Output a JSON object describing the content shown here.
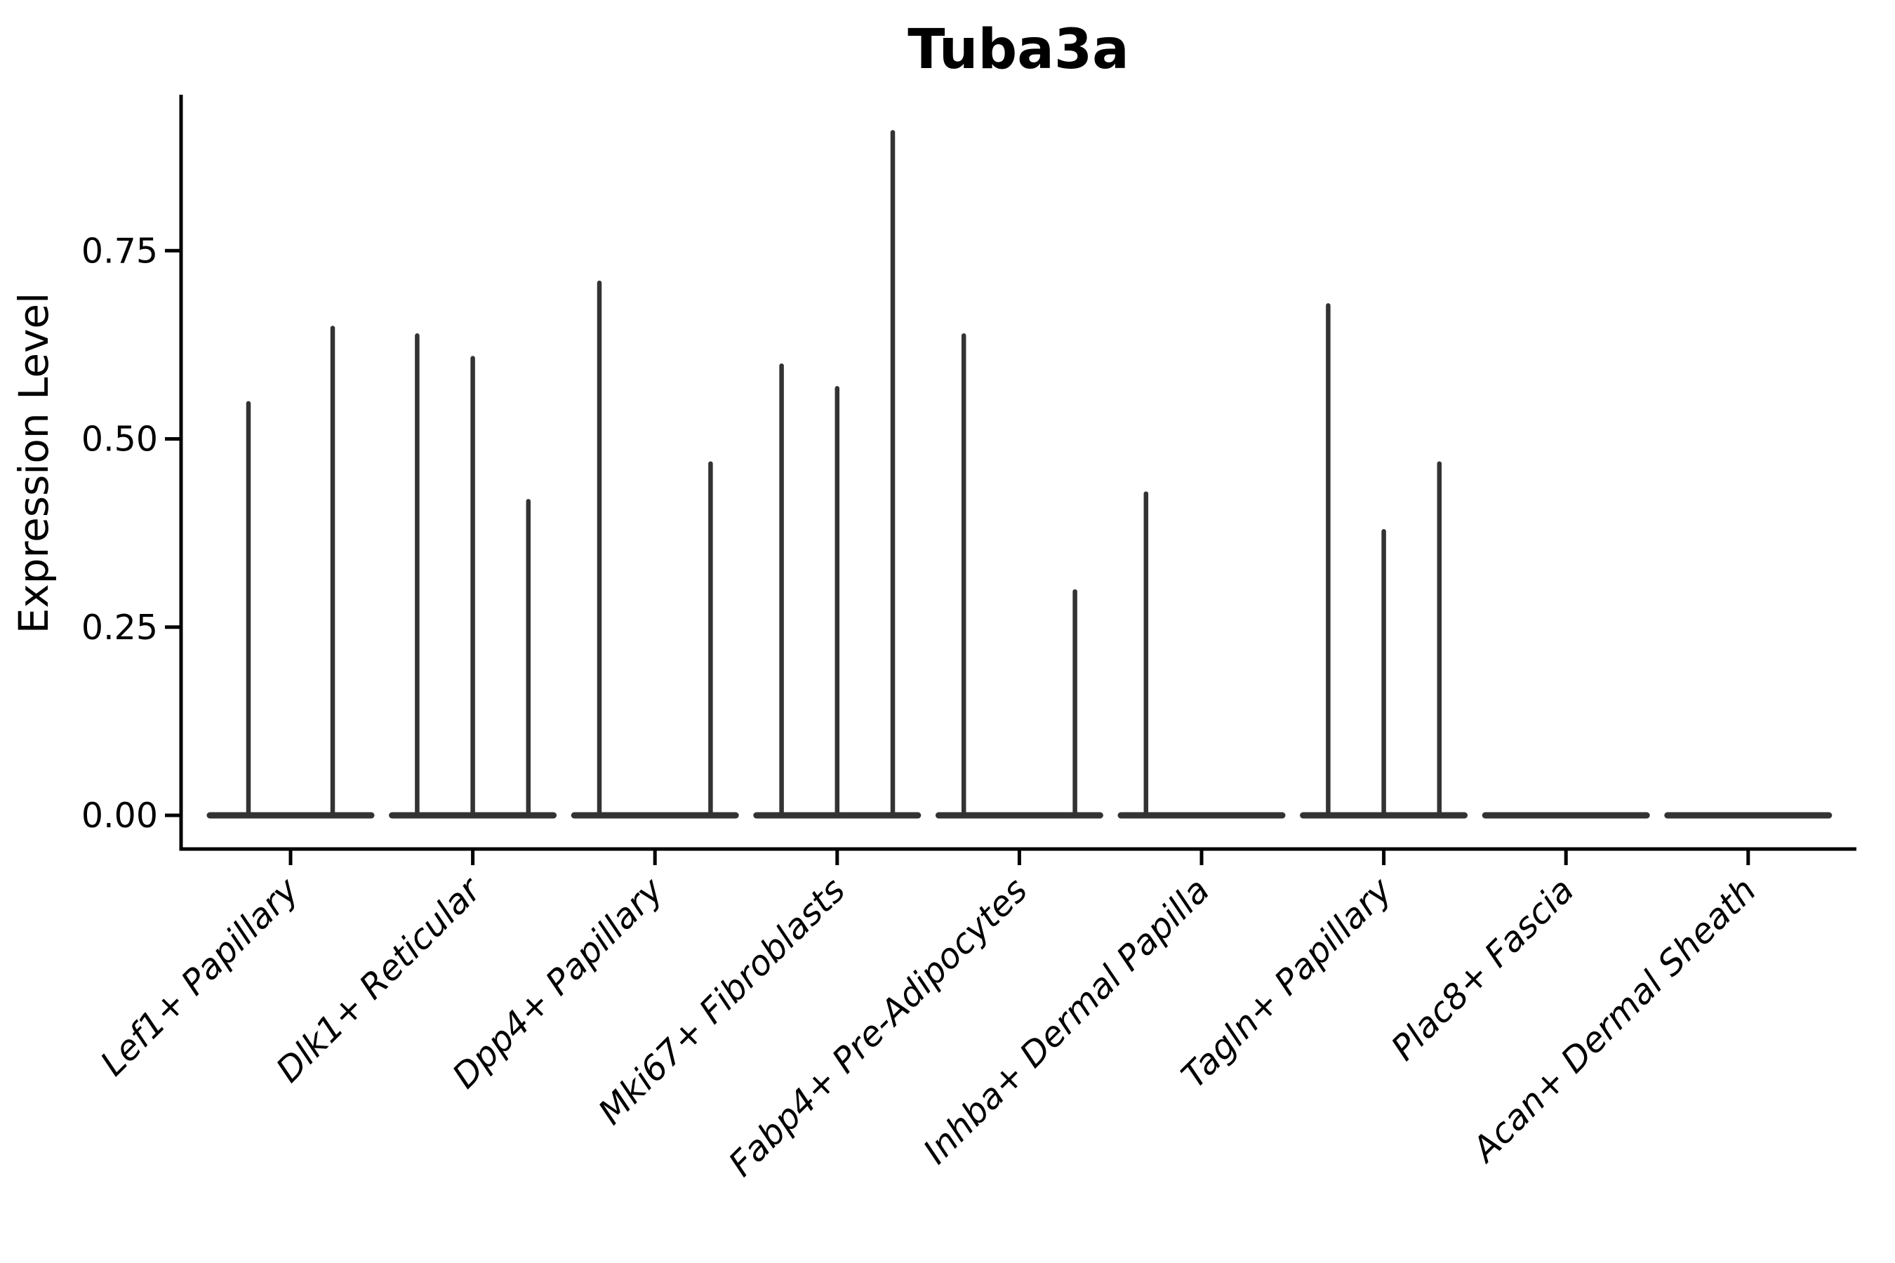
{
  "page": {
    "background_color": "#ffffff"
  },
  "chart_data": {
    "type": "violin",
    "title": "Tuba3a",
    "xlabel": "",
    "ylabel": "Expression Level",
    "ylim": [
      -0.045,
      0.957
    ],
    "ytick_labels": [
      "0.00",
      "0.25",
      "0.50",
      "0.75"
    ],
    "ytick_values": [
      0.0,
      0.25,
      0.5,
      0.75
    ],
    "grid": false,
    "legend_position": "none",
    "violin_color": "#333333",
    "axis_color": "#000000",
    "categories": [
      {
        "label": "Lef1+ Papillary",
        "violins": [
          {
            "pos": -0.25,
            "max_expression": 0.55
          },
          {
            "pos": 0.25,
            "max_expression": 0.65
          }
        ]
      },
      {
        "label": "Dlk1+ Reticular",
        "violins": [
          {
            "pos": -0.33,
            "max_expression": 0.64
          },
          {
            "pos": 0.0,
            "max_expression": 0.61
          },
          {
            "pos": 0.33,
            "max_expression": 0.42
          }
        ]
      },
      {
        "label": "Dpp4+ Papillary",
        "violins": [
          {
            "pos": -0.33,
            "max_expression": 0.71
          },
          {
            "pos": 0.0,
            "max_expression": 0.0
          },
          {
            "pos": 0.33,
            "max_expression": 0.47
          }
        ]
      },
      {
        "label": "Mki67+ Fibroblasts",
        "violins": [
          {
            "pos": -0.33,
            "max_expression": 0.6
          },
          {
            "pos": 0.0,
            "max_expression": 0.57
          },
          {
            "pos": 0.33,
            "max_expression": 0.91
          }
        ]
      },
      {
        "label": "Fabp4+ Pre-Adipocytes",
        "violins": [
          {
            "pos": -0.33,
            "max_expression": 0.64
          },
          {
            "pos": 0.0,
            "max_expression": 0.0
          },
          {
            "pos": 0.33,
            "max_expression": 0.3
          }
        ]
      },
      {
        "label": "Inhba+ Dermal Papilla",
        "violins": [
          {
            "pos": -0.33,
            "max_expression": 0.43
          },
          {
            "pos": 0.0,
            "max_expression": 0.0
          },
          {
            "pos": 0.33,
            "max_expression": 0.0
          }
        ]
      },
      {
        "label": "Tagln+ Papillary",
        "violins": [
          {
            "pos": -0.33,
            "max_expression": 0.68
          },
          {
            "pos": 0.0,
            "max_expression": 0.38
          },
          {
            "pos": 0.33,
            "max_expression": 0.47
          }
        ]
      },
      {
        "label": "Plac8+ Fascia",
        "violins": [
          {
            "pos": 0.0,
            "max_expression": 0.0
          }
        ]
      },
      {
        "label": "Acan+ Dermal Sheath",
        "violins": [
          {
            "pos": 0.0,
            "max_expression": 0.0
          }
        ]
      }
    ]
  }
}
